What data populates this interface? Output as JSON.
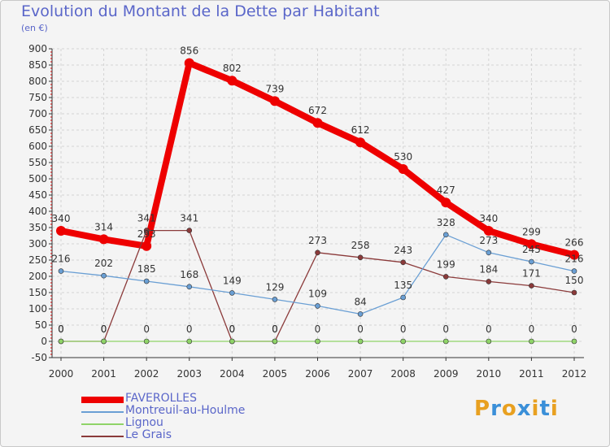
{
  "title": "Evolution du Montant de la Dette par Habitant",
  "subtitle": "(en €)",
  "brand": [
    "P",
    "r",
    "o",
    "x",
    "i",
    "t",
    "i"
  ],
  "brand_colors": [
    "#e8a020",
    "#3a8fd8",
    "#e8a020",
    "#3a8fd8",
    "#e8a020",
    "#3a8fd8",
    "#e8a020"
  ],
  "chart_data": {
    "type": "line",
    "title": "Evolution du Montant de la Dette par Habitant",
    "ylabel": "(en €)",
    "ylim": [
      -50,
      900
    ],
    "yticks": [
      -50,
      0,
      50,
      100,
      150,
      200,
      250,
      300,
      350,
      400,
      450,
      500,
      550,
      600,
      650,
      700,
      750,
      800,
      850,
      900
    ],
    "categories": [
      "2000",
      "2001",
      "2002",
      "2003",
      "2004",
      "2005",
      "2006",
      "2007",
      "2008",
      "2009",
      "2010",
      "2011",
      "2012"
    ],
    "series": [
      {
        "name": "FAVEROLLES",
        "color": "#ee0000",
        "values": [
          340,
          314,
          293,
          856,
          802,
          739,
          672,
          612,
          530,
          427,
          340,
          299,
          266
        ],
        "labels": [
          "340",
          "314",
          "293",
          "856",
          "802",
          "739",
          "672",
          "612",
          "530",
          "427",
          "340",
          "299",
          "266"
        ]
      },
      {
        "name": "Montreuil-au-Houlme",
        "color": "#6a9fd4",
        "values": [
          216,
          202,
          185,
          168,
          149,
          129,
          109,
          84,
          135,
          328,
          273,
          245,
          216
        ],
        "labels": [
          "216",
          "202",
          "185",
          "168",
          "149",
          "129",
          "109",
          "84",
          "135",
          "328",
          "273",
          "245",
          "216"
        ]
      },
      {
        "name": "Lignou",
        "color": "#8fd468",
        "values": [
          0,
          0,
          0,
          0,
          0,
          0,
          0,
          0,
          0,
          0,
          0,
          0,
          0
        ],
        "labels": [
          "0",
          "0",
          "0",
          "0",
          "0",
          "0",
          "0",
          "0",
          "0",
          "0",
          "0",
          "0",
          "0"
        ]
      },
      {
        "name": "Le Grais",
        "color": "#8b3a3a",
        "values": [
          0,
          0,
          341,
          341,
          0,
          0,
          273,
          258,
          243,
          199,
          184,
          171,
          150
        ],
        "labels": [
          "0",
          "0",
          "341",
          "341",
          "0",
          "0",
          "273",
          "258",
          "243",
          "199",
          "184",
          "171",
          "150"
        ]
      }
    ]
  }
}
